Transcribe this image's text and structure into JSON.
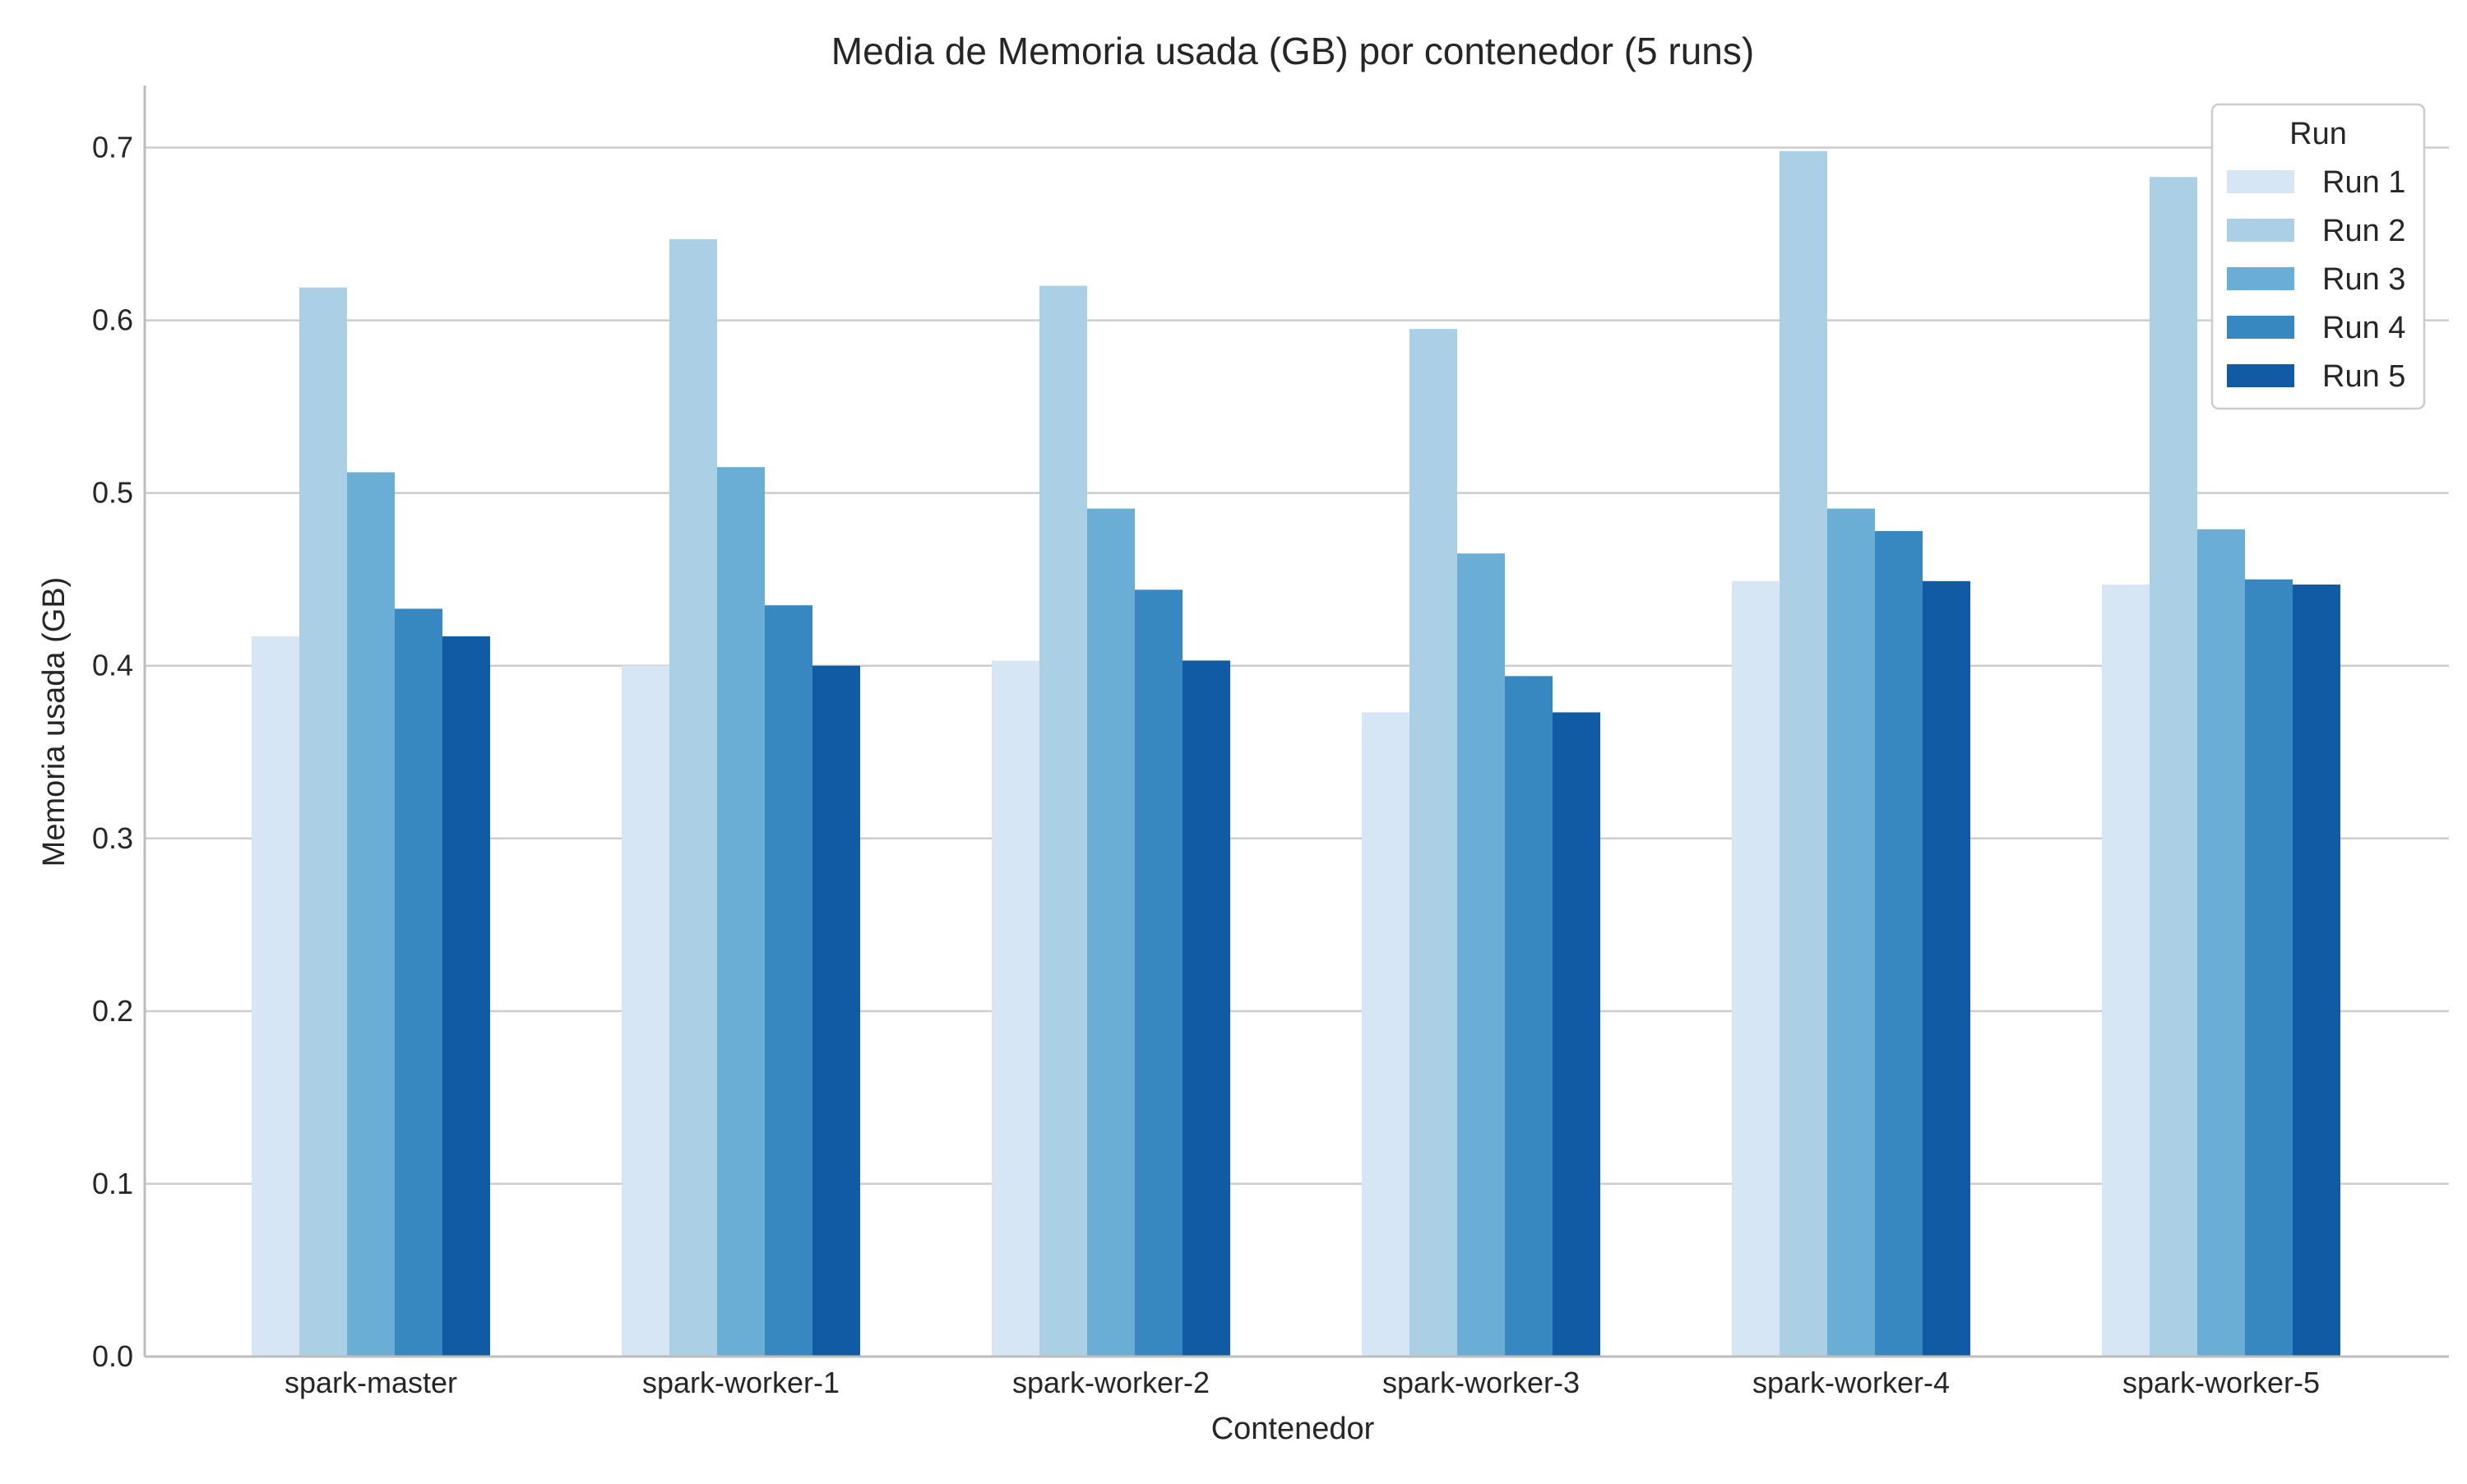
{
  "chart_data": {
    "type": "bar",
    "title": "Media de Memoria usada (GB) por contenedor (5 runs)",
    "xlabel": "Contenedor",
    "ylabel": "Memoria usada (GB)",
    "ylim": [
      0,
      0.735
    ],
    "yticks": [
      0.0,
      0.1,
      0.2,
      0.3,
      0.4,
      0.5,
      0.6,
      0.7
    ],
    "ytick_labels": [
      "0.0",
      "0.1",
      "0.2",
      "0.3",
      "0.4",
      "0.5",
      "0.6",
      "0.7"
    ],
    "grid": "horizontal",
    "categories": [
      "spark-master",
      "spark-worker-1",
      "spark-worker-2",
      "spark-worker-3",
      "spark-worker-4",
      "spark-worker-5"
    ],
    "legend": {
      "title": "Run",
      "placement": "top-right"
    },
    "series": [
      {
        "name": "Run 1",
        "color": "#d6e6f4",
        "values": [
          0.417,
          0.4,
          0.403,
          0.373,
          0.449,
          0.447
        ]
      },
      {
        "name": "Run 2",
        "color": "#abd0e6",
        "values": [
          0.619,
          0.647,
          0.62,
          0.595,
          0.698,
          0.683
        ]
      },
      {
        "name": "Run 3",
        "color": "#6aaed6",
        "values": [
          0.512,
          0.515,
          0.491,
          0.465,
          0.491,
          0.479
        ]
      },
      {
        "name": "Run 4",
        "color": "#3787c0",
        "values": [
          0.433,
          0.435,
          0.444,
          0.394,
          0.478,
          0.45
        ]
      },
      {
        "name": "Run 5",
        "color": "#105ba4",
        "values": [
          0.417,
          0.4,
          0.403,
          0.373,
          0.449,
          0.447
        ]
      }
    ]
  }
}
